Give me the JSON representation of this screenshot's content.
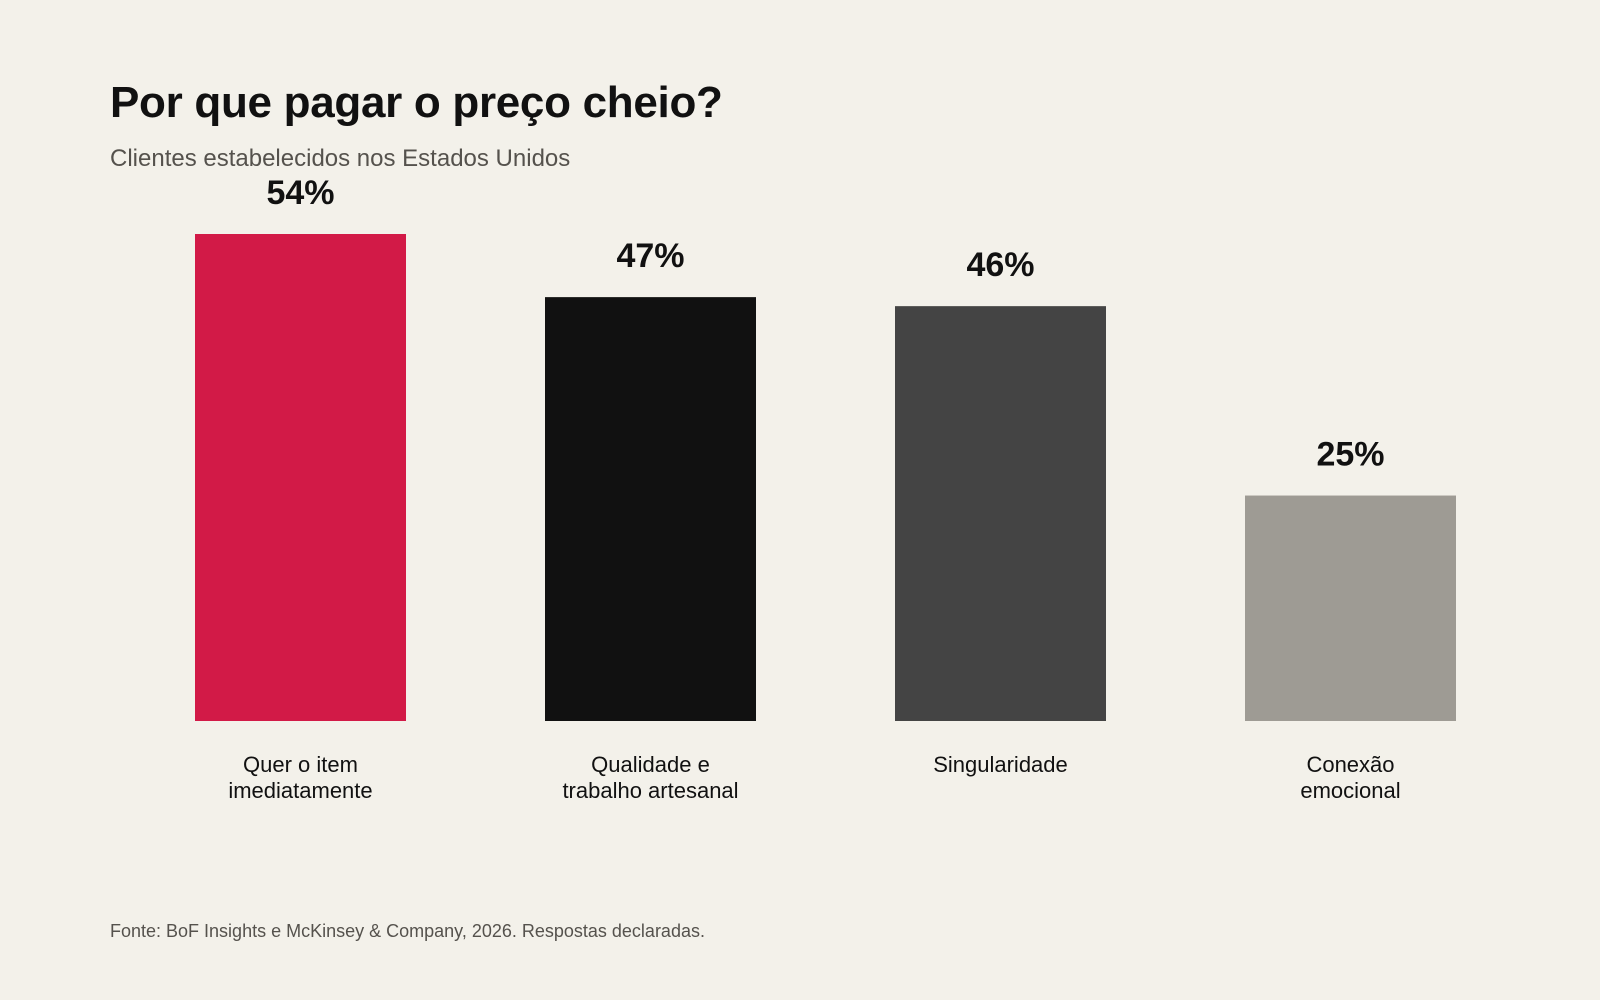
{
  "title": "Por que pagar o preço cheio?",
  "subtitle": "Clientes estabelecidos nos Estados Unidos",
  "source": "Fonte: BoF Insights e McKinsey & Company, 2026. Respostas declaradas.",
  "chart_data": {
    "type": "bar",
    "title": "Por que pagar o preço cheio?",
    "subtitle": "Clientes estabelecidos nos Estados Unidos",
    "categories": [
      [
        "Quer o item",
        "imediatamente"
      ],
      [
        "Qualidade e",
        "trabalho artesanal"
      ],
      [
        "Singularidade"
      ],
      [
        "Conexão",
        "emocional"
      ]
    ],
    "values": [
      54,
      47,
      46,
      25
    ],
    "value_labels": [
      "54%",
      "47%",
      "46%",
      "25%"
    ],
    "colors": [
      "#d21a47",
      "#111111",
      "#444444",
      "#9e9b94"
    ],
    "unit": "%",
    "ylim": [
      0,
      54
    ],
    "grid": false,
    "legend": "none",
    "xlabel": "",
    "ylabel": ""
  }
}
